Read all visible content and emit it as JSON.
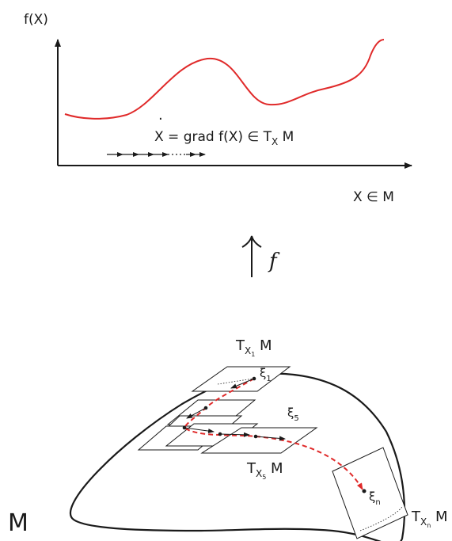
{
  "top_plot": {
    "y_axis_label": "f(X)",
    "x_axis_label": "X ∈ M",
    "equation": {
      "lhs": "X",
      "middle": " = grad f(X) ∈  T",
      "sub": "X",
      "rhs": " M"
    },
    "curve_color": "#e02a2a"
  },
  "mapping": {
    "arrow": "↑",
    "symbol": "f"
  },
  "manifold": {
    "label": "M",
    "tangent_x1": {
      "base": "T",
      "sub": "X",
      "subsub": "1",
      "tail": " M"
    },
    "tangent_x5": {
      "base": "T",
      "sub": "X",
      "subsub": "5",
      "tail": " M"
    },
    "tangent_xn": {
      "base": "T",
      "sub": "X",
      "subsub": "n",
      "tail": " M"
    },
    "xi_1": {
      "base": "ξ",
      "sub": "1"
    },
    "xi_5": {
      "base": "ξ",
      "sub": "5"
    },
    "xi_n": {
      "base": "ξ",
      "sub": "n"
    },
    "path_color": "#e02a2a"
  }
}
